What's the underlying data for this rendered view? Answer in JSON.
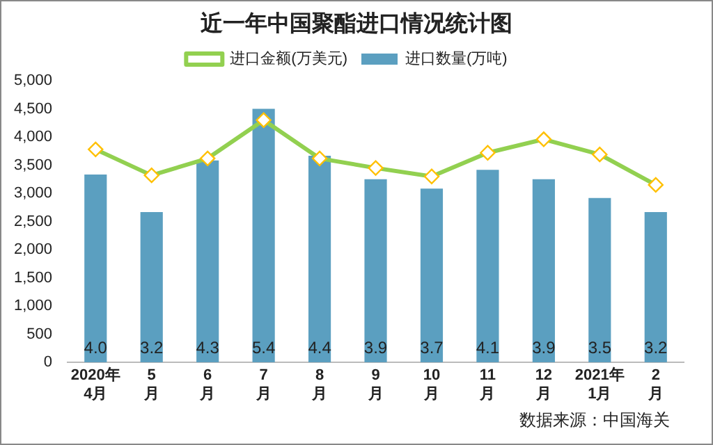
{
  "chart_data": {
    "type": "bar",
    "title": "近一年中国聚酯进口情况统计图",
    "categories": [
      "2020年\n4月",
      "5\n月",
      "6\n月",
      "7\n月",
      "8\n月",
      "9\n月",
      "10\n月",
      "11\n月",
      "12\n月",
      "2021年\n1月",
      "2\n月"
    ],
    "series": [
      {
        "name": "进口数量(万吨)",
        "color": "#5b9fc0",
        "axis": "y2",
        "values": [
          4.0,
          3.2,
          4.3,
          5.4,
          4.4,
          3.9,
          3.7,
          4.1,
          3.9,
          3.5,
          3.2
        ],
        "value_labels": [
          "4.0",
          "3.2",
          "4.3",
          "5.4",
          "4.4",
          "3.9",
          "3.7",
          "4.1",
          "3.9",
          "3.5",
          "3.2"
        ]
      },
      {
        "name": "进口金额(万美元)",
        "type": "line",
        "color": "#92d050",
        "values": [
          3780,
          3320,
          3620,
          4300,
          3620,
          3450,
          3300,
          3720,
          3960,
          3690,
          3150
        ]
      }
    ],
    "ylim": [
      0,
      5000
    ],
    "yticks": [
      0,
      500,
      {
        "value": 1000,
        "label": "1,000"
      },
      {
        "value": 1500,
        "label": "1,500"
      },
      {
        "value": 2000,
        "label": "2,000"
      },
      {
        "value": 2500,
        "label": "2,500"
      },
      {
        "value": 3000,
        "label": "3,000"
      },
      {
        "value": 3500,
        "label": "3,500"
      },
      {
        "value": 4000,
        "label": "4,000"
      },
      {
        "value": 4500,
        "label": "4,500"
      },
      {
        "value": 5000,
        "label": "5,000"
      }
    ],
    "grid": false,
    "legend": "top",
    "marker": "diamond",
    "annotations": [
      "数据来源：中国海关"
    ]
  }
}
